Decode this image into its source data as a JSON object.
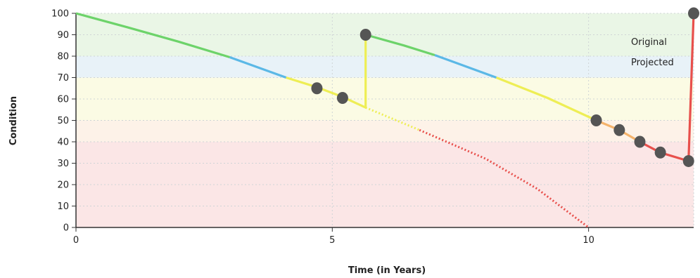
{
  "chart_data": {
    "type": "line",
    "xlabel": "Time (in Years)",
    "ylabel": "Condition",
    "xlim": [
      0,
      12.05
    ],
    "ylim": [
      0,
      100
    ],
    "xticks": [
      0,
      5,
      10
    ],
    "yticks": [
      0,
      10,
      20,
      30,
      40,
      50,
      60,
      70,
      80,
      90,
      100
    ],
    "grid": true,
    "legend": {
      "position": "top-right",
      "entries": [
        "Original",
        "Projected"
      ]
    },
    "condition_bands": [
      {
        "from": 80,
        "to": 100,
        "color": "#eaf6e6"
      },
      {
        "from": 70,
        "to": 80,
        "color": "#e8f2f8"
      },
      {
        "from": 50,
        "to": 70,
        "color": "#fbfbe4"
      },
      {
        "from": 40,
        "to": 50,
        "color": "#fdf2e8"
      },
      {
        "from": 0,
        "to": 40,
        "color": "#fbe6e6"
      }
    ],
    "colors": {
      "green": "#6dd36a",
      "blue": "#5bb8e6",
      "yellow": "#eeee55",
      "orange": "#f5b36b",
      "red": "#e8504c",
      "marker": "#555555"
    },
    "series": [
      {
        "name": "Original",
        "style": "solid",
        "segments": [
          {
            "color": "green",
            "points": [
              [
                0,
                100
              ],
              [
                1,
                93.5
              ],
              [
                2,
                86.8
              ],
              [
                3,
                79.5
              ]
            ]
          },
          {
            "color": "blue",
            "points": [
              [
                3,
                79.5
              ],
              [
                4.1,
                70
              ]
            ]
          },
          {
            "color": "yellow",
            "points": [
              [
                4.1,
                70
              ],
              [
                4.7,
                65.5
              ],
              [
                5.2,
                61
              ],
              [
                5.65,
                56
              ],
              [
                5.65,
                90
              ]
            ]
          },
          {
            "color": "green",
            "points": [
              [
                5.65,
                90
              ],
              [
                6.4,
                85
              ],
              [
                7.0,
                80.5
              ]
            ]
          },
          {
            "color": "blue",
            "points": [
              [
                7.0,
                80.5
              ],
              [
                8.2,
                70
              ]
            ]
          },
          {
            "color": "yellow",
            "points": [
              [
                8.2,
                70
              ],
              [
                9.2,
                60.5
              ],
              [
                10.15,
                50
              ]
            ]
          },
          {
            "color": "orange",
            "points": [
              [
                10.15,
                50
              ],
              [
                10.6,
                45.5
              ],
              [
                11.0,
                40
              ]
            ]
          },
          {
            "color": "red",
            "points": [
              [
                11.0,
                40
              ],
              [
                11.4,
                35
              ],
              [
                11.95,
                31
              ],
              [
                12.05,
                100
              ]
            ]
          }
        ]
      },
      {
        "name": "Projected",
        "style": "dotted",
        "segments": [
          {
            "color": "yellow",
            "points": [
              [
                5.65,
                56
              ],
              [
                6.7,
                45.5
              ]
            ]
          },
          {
            "color": "red",
            "points": [
              [
                6.7,
                45.5
              ],
              [
                8.0,
                32
              ],
              [
                9.0,
                18
              ],
              [
                10.0,
                0
              ]
            ]
          }
        ]
      }
    ],
    "markers": [
      {
        "x": 4.7,
        "y": 65
      },
      {
        "x": 5.2,
        "y": 60.5
      },
      {
        "x": 5.65,
        "y": 90
      },
      {
        "x": 10.15,
        "y": 50
      },
      {
        "x": 10.6,
        "y": 45.5
      },
      {
        "x": 11.0,
        "y": 40
      },
      {
        "x": 11.4,
        "y": 35
      },
      {
        "x": 11.95,
        "y": 31
      },
      {
        "x": 12.05,
        "y": 100
      }
    ]
  }
}
